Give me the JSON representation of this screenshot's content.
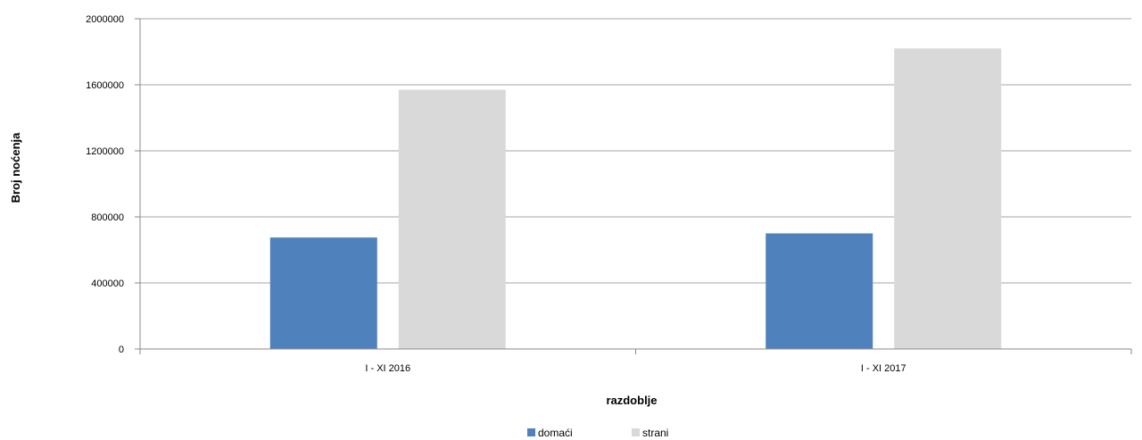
{
  "chart_data": {
    "type": "bar",
    "categories": [
      "I - XI 2016",
      "I - XI 2017"
    ],
    "series": [
      {
        "name": "domaći",
        "values": [
          675000,
          700000
        ],
        "color": "#4f81bd"
      },
      {
        "name": "strani",
        "values": [
          1570000,
          1820000
        ],
        "color": "#d9d9d9"
      }
    ],
    "xlabel": "razdoblje",
    "ylabel": "Broj noćenja",
    "ylim": [
      0,
      2000000
    ],
    "yticks": [
      0,
      400000,
      800000,
      1200000,
      1600000,
      2000000
    ],
    "grid": true,
    "legend_position": "bottom"
  }
}
